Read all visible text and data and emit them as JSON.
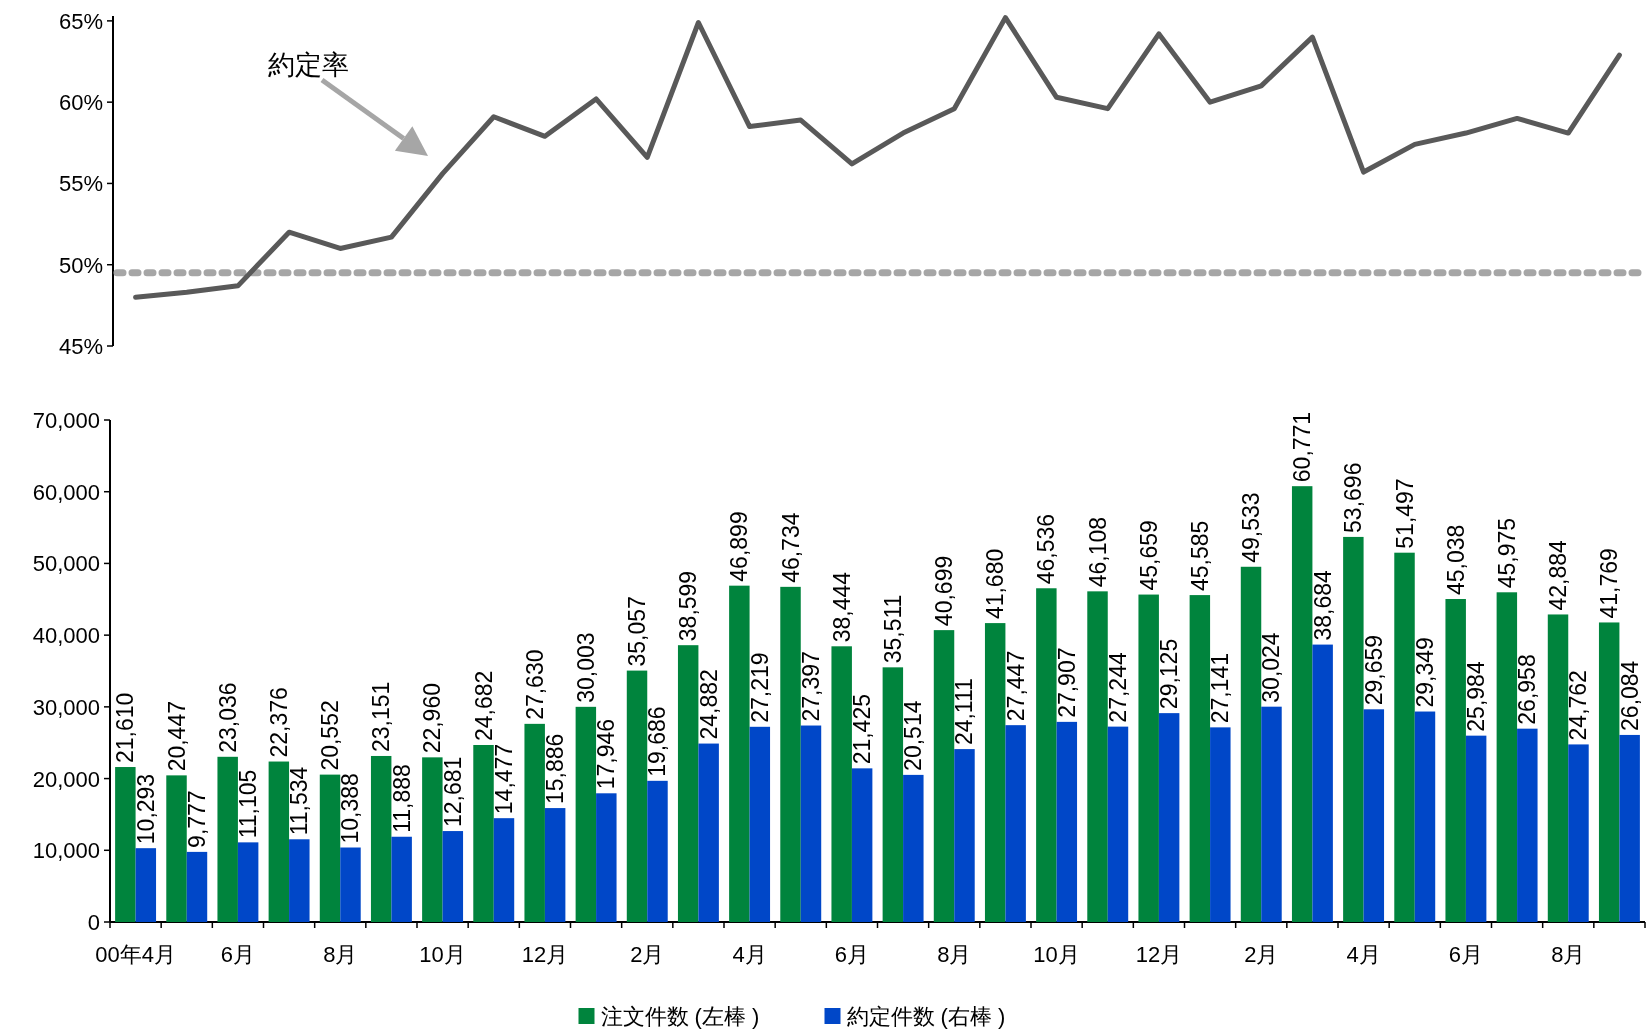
{
  "chart_data": [
    {
      "type": "line",
      "categories": [
        null,
        null,
        null,
        null,
        null,
        null,
        null,
        null,
        null,
        null,
        null,
        null,
        null,
        null,
        null,
        null,
        null,
        null,
        null,
        null,
        null,
        null,
        null,
        null,
        null,
        null,
        null,
        null,
        null,
        null
      ],
      "series": [
        {
          "color": "#595959",
          "values": [
            48.0,
            48.3,
            48.7,
            52.0,
            51.0,
            51.7,
            55.6,
            59.1,
            57.9,
            60.2,
            56.6,
            64.9,
            58.5,
            58.9,
            56.2,
            58.1,
            59.6,
            65.2,
            60.3,
            59.6,
            64.2,
            60.0,
            61.0,
            64.0,
            55.7,
            57.4,
            58.1,
            59.0,
            58.1,
            62.9
          ]
        }
      ],
      "ylim": [
        45,
        65.3
      ],
      "yticks": [
        {
          "value": 45,
          "label": "45%"
        },
        {
          "value": 50,
          "label": "50%"
        },
        {
          "value": 55,
          "label": "55%"
        },
        {
          "value": 60,
          "label": "60%"
        },
        {
          "value": 65,
          "label": "65%"
        }
      ],
      "ref_lines": [
        {
          "axis": "y",
          "value": 49.5,
          "color": "#a6a6a6",
          "line_style": "dashed"
        }
      ],
      "annotations": [
        "約定率"
      ],
      "tick_labels": "y",
      "line_style": "solid",
      "marker": "none"
    },
    {
      "type": "bar",
      "categories": [
        "00年4月",
        null,
        "6月",
        null,
        "8月",
        null,
        "10月",
        null,
        "12月",
        null,
        "2月",
        null,
        "4月",
        null,
        "6月",
        null,
        "8月",
        null,
        "10月",
        null,
        "12月",
        null,
        "2月",
        null,
        "4月",
        null,
        "6月",
        null,
        "8月",
        null
      ],
      "series": [
        {
          "name": "注文件数 (左棒 )",
          "color": "#00843d",
          "values": [
            21610,
            20447,
            23036,
            22376,
            20552,
            23151,
            22960,
            24682,
            27630,
            30003,
            35057,
            38599,
            46899,
            46734,
            38444,
            35511,
            40699,
            41680,
            46536,
            46108,
            45659,
            45585,
            49533,
            60771,
            53696,
            51497,
            45038,
            45975,
            42884,
            41769
          ],
          "value_labels": [
            "21,610",
            "20,447",
            "23,036",
            "22,376",
            "20,552",
            "23,151",
            "22,960",
            "24,682",
            "27,630",
            "30,003",
            "35,057",
            "38,599",
            "46,899",
            "46,734",
            "38,444",
            "35,511",
            "40,699",
            "41,680",
            "46,536",
            "46,108",
            "45,659",
            "45,585",
            "49,533",
            "60,771",
            "53,696",
            "51,497",
            "45,038",
            "45,975",
            "42,884",
            "41,769"
          ]
        },
        {
          "name": "約定件数 (右棒 )",
          "color": "#0047c8",
          "values": [
            10293,
            9777,
            11105,
            11534,
            10388,
            11888,
            12681,
            14477,
            15886,
            17946,
            19686,
            24882,
            27219,
            27397,
            21425,
            20514,
            24111,
            27447,
            27907,
            27244,
            29125,
            27141,
            30024,
            38684,
            29659,
            29349,
            25984,
            26958,
            24762,
            26084
          ],
          "value_labels": [
            "10,293",
            "9,777",
            "11,105",
            "11,534",
            "10,388",
            "11,888",
            "12,681",
            "14,477",
            "15,886",
            "17,946",
            "19,686",
            "24,882",
            "27,219",
            "27,397",
            "21,425",
            "20,514",
            "24,111",
            "27,447",
            "27,907",
            "27,244",
            "29,125",
            "27,141",
            "30,024",
            "38,684",
            "29,659",
            "29,349",
            "25,984",
            "26,958",
            "24,762",
            "26,084"
          ]
        }
      ],
      "ylim": [
        0,
        70000
      ],
      "yticks": [
        {
          "value": 0,
          "label": "0"
        },
        {
          "value": 10000,
          "label": "10,000"
        },
        {
          "value": 20000,
          "label": "20,000"
        },
        {
          "value": 30000,
          "label": "30,000"
        },
        {
          "value": 40000,
          "label": "40,000"
        },
        {
          "value": 50000,
          "label": "50,000"
        },
        {
          "value": 60000,
          "label": "60,000"
        },
        {
          "value": 70000,
          "label": "70,000"
        }
      ],
      "legend": "bottom"
    }
  ]
}
